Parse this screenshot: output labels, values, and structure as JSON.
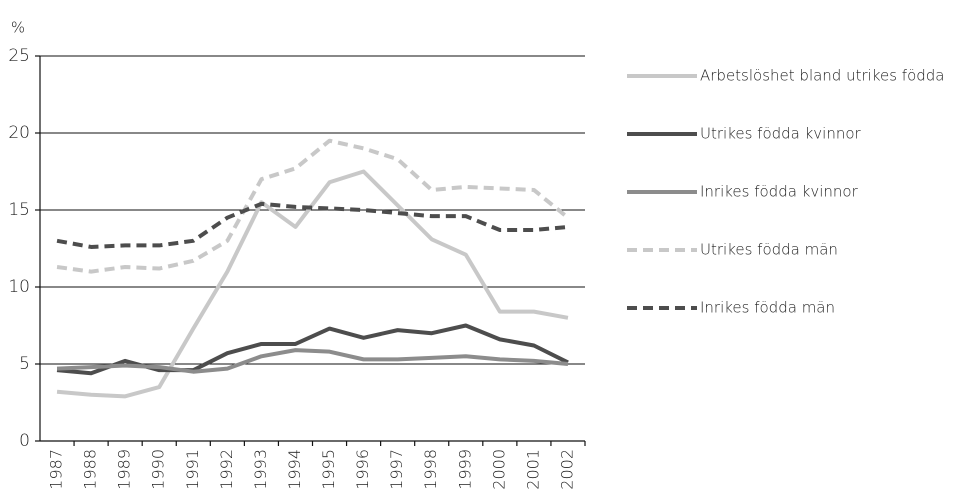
{
  "chart_data": {
    "type": "line",
    "y_label": "%",
    "categories": [
      "1987",
      "1988",
      "1989",
      "1990",
      "1991",
      "1992",
      "1993",
      "1994",
      "1995",
      "1996",
      "1997",
      "1998",
      "1999",
      "2000",
      "2001",
      "2002"
    ],
    "series": [
      {
        "name": "Arbetslöshet bland utrikes födda",
        "color": "#c8c8c8",
        "dashed": false,
        "values": [
          3.2,
          3.0,
          2.9,
          3.5,
          7.3,
          11.0,
          15.5,
          13.9,
          16.8,
          17.5,
          15.3,
          13.1,
          12.1,
          8.4,
          8.4,
          8.0
        ]
      },
      {
        "name": "Utrikes födda kvinnor",
        "color": "#4d4d4d",
        "dashed": false,
        "values": [
          4.6,
          4.4,
          5.2,
          4.6,
          4.6,
          5.7,
          6.3,
          6.3,
          7.3,
          6.7,
          7.2,
          7.0,
          7.5,
          6.6,
          6.2,
          5.1
        ]
      },
      {
        "name": "Inrikes födda kvinnor",
        "color": "#8c8c8c",
        "dashed": false,
        "values": [
          4.7,
          4.8,
          4.9,
          4.8,
          4.5,
          4.7,
          5.5,
          5.9,
          5.8,
          5.3,
          5.3,
          5.4,
          5.5,
          5.3,
          5.2,
          5.0
        ]
      },
      {
        "name": "Utrikes födda män",
        "color": "#c8c8c8",
        "dashed": true,
        "values": [
          11.3,
          11.0,
          11.3,
          11.2,
          11.7,
          13.0,
          17.0,
          17.7,
          19.5,
          19.0,
          18.3,
          16.3,
          16.5,
          16.4,
          16.3,
          14.5
        ]
      },
      {
        "name": "Inrikes födda män",
        "color": "#4d4d4d",
        "dashed": true,
        "values": [
          13.0,
          12.6,
          12.7,
          12.7,
          13.0,
          14.5,
          15.4,
          15.2,
          15.1,
          15.0,
          14.8,
          14.6,
          14.6,
          13.7,
          13.7,
          13.9
        ]
      }
    ],
    "ylim": [
      0,
      25
    ],
    "yticks": [
      0,
      5,
      10,
      15,
      20,
      25
    ],
    "grid": true
  }
}
